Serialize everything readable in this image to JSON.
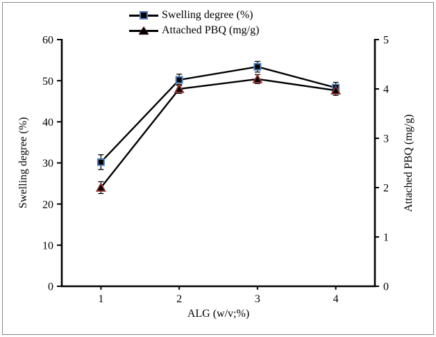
{
  "figure": {
    "background": "#ffffff",
    "border_color": "#8a8a8a",
    "axis_color": "#000000",
    "text_color": "#000000"
  },
  "chart_data": {
    "type": "line",
    "title": "",
    "x_label": "ALG (w/v;%)",
    "x_categories": [
      "1",
      "2",
      "3",
      "4"
    ],
    "axes": {
      "left": {
        "label": "Swelling degree (%)",
        "min": 0,
        "max": 60,
        "ticks": [
          0,
          10,
          20,
          30,
          40,
          50,
          60
        ]
      },
      "right": {
        "label": "Attached PBQ (mg/g)",
        "min": 0,
        "max": 5,
        "ticks": [
          0,
          1,
          2,
          3,
          4,
          5
        ]
      }
    },
    "series": [
      {
        "name": "Swelling degree (%)",
        "axis": "left",
        "marker": "square",
        "line_color": "#000000",
        "marker_fill": "#000000",
        "marker_stroke": "#4f81bd",
        "values": [
          30.2,
          50.2,
          53.4,
          48.3
        ],
        "error_bars": [
          1.8,
          1.4,
          1.3,
          1.3
        ]
      },
      {
        "name": "Attached PBQ (mg/g)",
        "axis": "right",
        "marker": "triangle",
        "line_color": "#000000",
        "marker_fill": "#000000",
        "marker_stroke": "#953735",
        "values": [
          2.0,
          4.0,
          4.2,
          3.97
        ],
        "error_bars": [
          0.12,
          0.09,
          0.09,
          0.1
        ]
      }
    ],
    "grid": false,
    "legend_position": "top-center",
    "legend": [
      "Swelling degree (%)",
      "Attached PBQ (mg/g)"
    ]
  }
}
